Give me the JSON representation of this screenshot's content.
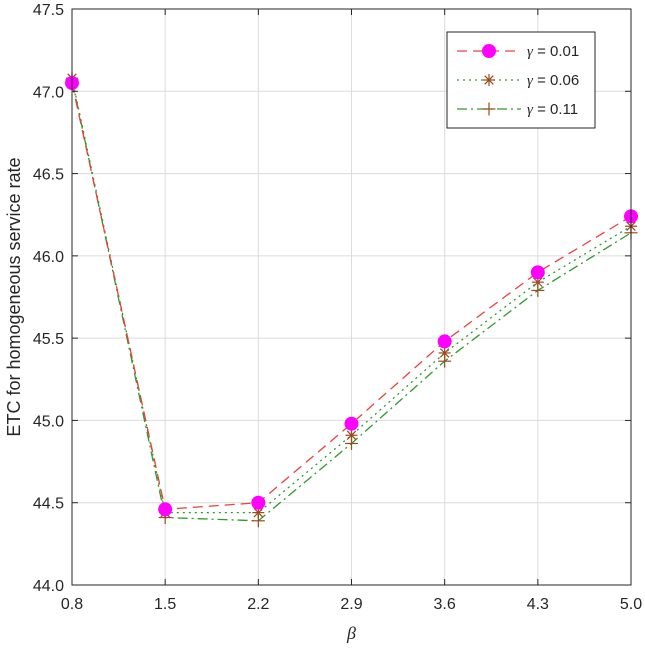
{
  "chart_data": {
    "type": "line",
    "xlabel": "β",
    "ylabel": "ETC for homogeneous service rate",
    "x": [
      0.8,
      1.5,
      2.2,
      2.9,
      3.6,
      4.3,
      5.0
    ],
    "x_tick_labels": [
      "0.8",
      "1.5",
      "2.2",
      "2.9",
      "3.6",
      "4.3",
      "5.0"
    ],
    "xlim": [
      0.8,
      5.0
    ],
    "ylim": [
      44.0,
      47.5
    ],
    "y_ticks": [
      44.0,
      44.5,
      45.0,
      45.5,
      46.0,
      46.5,
      47.0,
      47.5
    ],
    "y_tick_labels": [
      "44.0",
      "44.5",
      "45.0",
      "45.5",
      "46.0",
      "46.5",
      "47.0",
      "47.5"
    ],
    "grid": true,
    "legend_position": "top-right",
    "series": [
      {
        "name_symbol": "γ",
        "name_value": " = 0.01",
        "color": "#e8413c",
        "dash": "10,6",
        "marker": "circle",
        "marker_color": "#ff00ff",
        "values": [
          47.05,
          44.46,
          44.5,
          44.98,
          45.48,
          45.9,
          46.24
        ]
      },
      {
        "name_symbol": "γ",
        "name_value": " = 0.06",
        "color": "#2e9a2e",
        "dash": "2,4",
        "marker": "asterisk",
        "marker_color": "#9b4a1c",
        "values": [
          47.08,
          44.44,
          44.44,
          44.91,
          45.41,
          45.84,
          46.18
        ]
      },
      {
        "name_symbol": "γ",
        "name_value": " = 0.11",
        "color": "#2e9a2e",
        "dash": "10,4,2,4",
        "marker": "plus",
        "marker_color": "#9b4a1c",
        "values": [
          47.07,
          44.41,
          44.39,
          44.86,
          45.36,
          45.79,
          46.14
        ]
      }
    ]
  }
}
